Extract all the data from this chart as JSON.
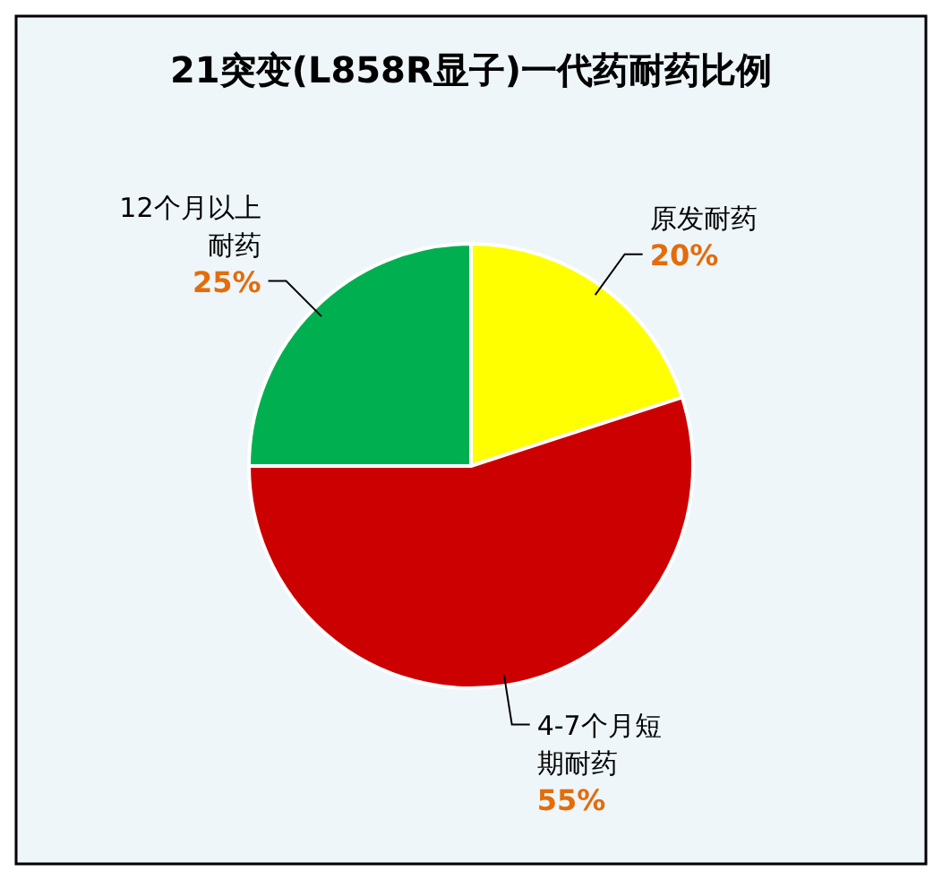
{
  "chart_data": {
    "type": "pie",
    "title": "21突变(L858R显子)一代药耐药比例",
    "categories": [
      "原发耐药",
      "4-7个月短期耐药",
      "12个月以上耐药"
    ],
    "values": [
      20,
      55,
      25
    ],
    "colors": [
      "#ffff00",
      "#cc0000",
      "#00b050"
    ],
    "value_labels": [
      "20%",
      "55%",
      "25%"
    ]
  }
}
